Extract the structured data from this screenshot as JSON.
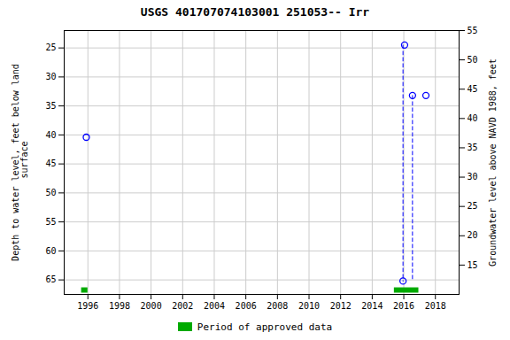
{
  "chart_data": {
    "type": "scatter",
    "title": "USGS 401707074103001 251053-- Irr",
    "ylabel": "Depth to water level, feet below land\n surface",
    "y2label": "Groundwater level above NAVD 1988, feet",
    "xlim": [
      1994.5,
      2019.5
    ],
    "xticks": [
      1996,
      1998,
      2000,
      2002,
      2004,
      2006,
      2008,
      2010,
      2012,
      2014,
      2016,
      2018
    ],
    "ylim": [
      67.5,
      22.0
    ],
    "yticks": [
      25,
      30,
      35,
      40,
      45,
      50,
      55,
      60,
      65
    ],
    "y2lim": [
      10.0,
      55.0
    ],
    "y2ticks": [
      15,
      20,
      25,
      30,
      35,
      40,
      45,
      50,
      55
    ],
    "grid": true,
    "legend": "bottom",
    "series": [
      {
        "type": "scatter",
        "color": "#0000ff",
        "marker": "open_circle",
        "x": [
          1995.9,
          2015.95,
          2016.05,
          2016.55,
          2017.4
        ],
        "values": [
          40.4,
          65.2,
          24.5,
          33.2,
          33.2
        ]
      },
      {
        "type": "line",
        "color": "#0000ff",
        "line_style": "dashed",
        "x": [
          2015.95,
          2015.95
        ],
        "values": [
          24.5,
          65.2
        ]
      },
      {
        "type": "line",
        "color": "#0000ff",
        "line_style": "dashed",
        "x": [
          2016.55,
          2016.55
        ],
        "values": [
          33.2,
          65.2
        ]
      },
      {
        "name": "Period of approved data",
        "type": "span",
        "color": "#00aa00",
        "x_start": [
          1995.6,
          2015.4
        ],
        "x_end": [
          1996.0,
          2016.95
        ]
      }
    ]
  }
}
